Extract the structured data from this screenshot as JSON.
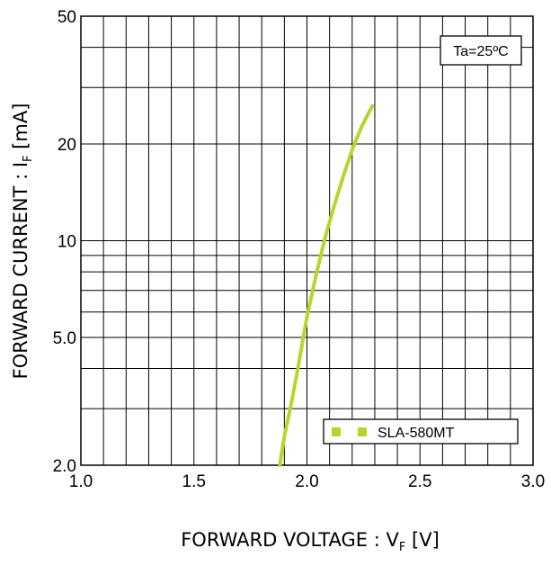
{
  "chart_data": {
    "type": "line",
    "x_scale": "linear",
    "y_scale": "log",
    "xlim": [
      1.0,
      3.0
    ],
    "ylim": [
      2.0,
      50
    ],
    "x_ticks": [
      1.0,
      1.5,
      2.0,
      2.5,
      3.0
    ],
    "x_tick_labels": [
      "1.0",
      "1.5",
      "2.0",
      "2.5",
      "3.0"
    ],
    "y_ticks": [
      2.0,
      5.0,
      10,
      20,
      50
    ],
    "y_tick_labels": [
      "2.0",
      "5.0",
      "10",
      "20",
      "50"
    ],
    "x_grid": [
      1.1,
      1.2,
      1.3,
      1.4,
      1.5,
      1.6,
      1.7,
      1.8,
      1.9,
      2.0,
      2.1,
      2.2,
      2.3,
      2.4,
      2.5,
      2.6,
      2.7,
      2.8,
      2.9
    ],
    "y_grid": [
      3,
      4,
      5,
      6,
      7,
      8,
      9,
      10,
      20,
      30,
      40
    ],
    "grid": true,
    "xlabel": {
      "main": "FORWARD VOLTAGE : V",
      "sub": "F",
      "unit": " [V]"
    },
    "ylabel": {
      "main": "FORWARD CURRENT : I",
      "sub": "F",
      "unit": " [mA]"
    },
    "annotation": "Ta=25ºC",
    "legend_position": "bottom-right",
    "series": [
      {
        "name": "SLA-580MT",
        "color": "#b9d52b",
        "x": [
          1.88,
          1.9,
          1.93,
          1.96,
          2.0,
          2.04,
          2.08,
          2.12,
          2.16,
          2.2,
          2.24,
          2.27,
          2.29
        ],
        "y": [
          2.0,
          2.45,
          3.1,
          4.0,
          5.8,
          7.8,
          10.2,
          12.8,
          15.8,
          19.2,
          22.5,
          24.8,
          26.3
        ]
      }
    ]
  }
}
